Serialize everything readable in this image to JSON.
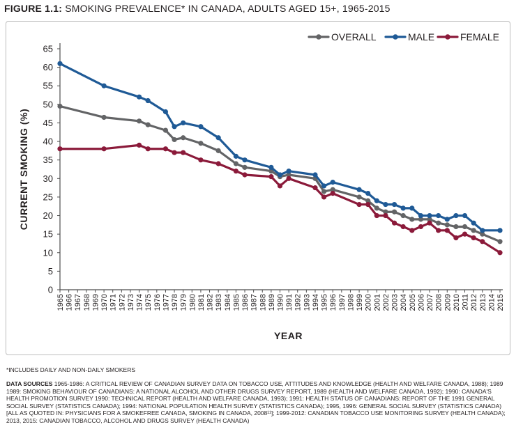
{
  "figure": {
    "label": "FIGURE 1.1:",
    "title": "SMOKING PREVALENCE* IN CANADA, ADULTS AGED 15+, 1965-2015"
  },
  "footnote": "*INCLUDES DAILY AND NON-DAILY SMOKERS",
  "sources": {
    "label": "DATA SOURCES",
    "text": " 1965-1986: A CRITICAL REVIEW OF CANADIAN SURVEY DATA ON TOBACCO USE, ATTITUDES AND KNOWLEDGE (HEALTH AND WELFARE CANADA, 1988); 1989 1989: SMOKING BEHAVIOUR OF CANADIANS: A NATIONAL ALCOHOL AND OTHER DRUGS SURVEY REPORT, 1989 (HEALTH AND WELFARE CANADA, 1992); 1990: CANADA'S HEALTH PROMOTION SURVEY 1990: TECHNICAL REPORT (HEALTH AND WELFARE CANADA, 1993); 1991: HEALTH STATUS OF CANADIANS: REPORT OF THE 1991 GENERAL SOCIAL SURVEY (STATISTICS CANADA); 1994: NATIONAL POPULATION HEALTH SURVEY (STATISTICS CANADA); 1995, 1996: GENERAL SOCIAL SURVEY (STATISTICS CANADA) [ALL AS QUOTED IN: PHYSICIANS FOR A SMOKEFREE CANADA, SMOKING IN CANADA, 2008¹¹]; 1999-2012: CANADIAN TOBACCO USE MONITORING SURVEY (HEALTH CANADA); 2013, 2015: CANADIAN TOBACCO, ALCOHOL AND DRUGS SURVEY (HEALTH CANADA)"
  },
  "chart_data": {
    "type": "line",
    "xlabel": "YEAR",
    "ylabel": "CURRENT SMOKING (%)",
    "ylim": [
      0,
      65
    ],
    "yticks": [
      0,
      5,
      10,
      15,
      20,
      25,
      30,
      35,
      40,
      45,
      50,
      55,
      60,
      65
    ],
    "xtick_labels": [
      "1965",
      "1966",
      "1967",
      "1968",
      "1969",
      "1970",
      "1971",
      "1972",
      "1973",
      "1974",
      "1975",
      "1976",
      "1977",
      "1978",
      "1979",
      "1980",
      "1981",
      "1982",
      "1983",
      "1984",
      "1985",
      "1986",
      "1987",
      "1988",
      "1989",
      "1990",
      "1991",
      "1992",
      "1993",
      "1994",
      "1995",
      "1996",
      "1997",
      "1998",
      "1999",
      "2000",
      "2001",
      "2002",
      "2003",
      "2004",
      "2005",
      "2006",
      "2007",
      "2008",
      "2009",
      "2010",
      "2011",
      "2012",
      "2013",
      "2014",
      "2015"
    ],
    "legend_position": "top-right",
    "series": [
      {
        "name": "OVERALL",
        "color": "#636466",
        "points": [
          [
            1965,
            49.5
          ],
          [
            1970,
            46.5
          ],
          [
            1974,
            45.5
          ],
          [
            1975,
            44.5
          ],
          [
            1977,
            43
          ],
          [
            1978,
            40.5
          ],
          [
            1979,
            41
          ],
          [
            1981,
            39.5
          ],
          [
            1983,
            37.5
          ],
          [
            1985,
            34
          ],
          [
            1986,
            33
          ],
          [
            1989,
            32
          ],
          [
            1990,
            30.5
          ],
          [
            1991,
            31
          ],
          [
            1994,
            30
          ],
          [
            1995,
            26.5
          ],
          [
            1996,
            27
          ],
          [
            1999,
            25
          ],
          [
            2000,
            24
          ],
          [
            2001,
            22
          ],
          [
            2002,
            21
          ],
          [
            2003,
            21
          ],
          [
            2004,
            20
          ],
          [
            2005,
            19
          ],
          [
            2006,
            19
          ],
          [
            2007,
            19
          ],
          [
            2008,
            18
          ],
          [
            2009,
            17.5
          ],
          [
            2010,
            17
          ],
          [
            2011,
            17
          ],
          [
            2012,
            16
          ],
          [
            2013,
            15
          ],
          [
            2015,
            13
          ]
        ]
      },
      {
        "name": "MALE",
        "color": "#1f5a96",
        "points": [
          [
            1965,
            61
          ],
          [
            1970,
            55
          ],
          [
            1974,
            52
          ],
          [
            1975,
            51
          ],
          [
            1977,
            48
          ],
          [
            1978,
            44
          ],
          [
            1979,
            45
          ],
          [
            1981,
            44
          ],
          [
            1983,
            41
          ],
          [
            1985,
            36
          ],
          [
            1986,
            35
          ],
          [
            1989,
            33
          ],
          [
            1990,
            31
          ],
          [
            1991,
            32
          ],
          [
            1994,
            31
          ],
          [
            1995,
            28
          ],
          [
            1996,
            29
          ],
          [
            1999,
            27
          ],
          [
            2000,
            26
          ],
          [
            2001,
            24
          ],
          [
            2002,
            23
          ],
          [
            2003,
            23
          ],
          [
            2004,
            22
          ],
          [
            2005,
            22
          ],
          [
            2006,
            20
          ],
          [
            2007,
            20
          ],
          [
            2008,
            20
          ],
          [
            2009,
            19
          ],
          [
            2010,
            20
          ],
          [
            2011,
            20
          ],
          [
            2012,
            18
          ],
          [
            2013,
            16
          ],
          [
            2015,
            16
          ]
        ]
      },
      {
        "name": "FEMALE",
        "color": "#8b1a3a",
        "points": [
          [
            1965,
            38
          ],
          [
            1970,
            38
          ],
          [
            1974,
            39
          ],
          [
            1975,
            38
          ],
          [
            1977,
            38
          ],
          [
            1978,
            37
          ],
          [
            1979,
            37
          ],
          [
            1981,
            35
          ],
          [
            1983,
            34
          ],
          [
            1985,
            32
          ],
          [
            1986,
            31
          ],
          [
            1989,
            30.5
          ],
          [
            1990,
            28
          ],
          [
            1991,
            30
          ],
          [
            1994,
            27.5
          ],
          [
            1995,
            25
          ],
          [
            1996,
            26
          ],
          [
            1999,
            23
          ],
          [
            2000,
            23
          ],
          [
            2001,
            20
          ],
          [
            2002,
            20
          ],
          [
            2003,
            18
          ],
          [
            2004,
            17
          ],
          [
            2005,
            16
          ],
          [
            2006,
            17
          ],
          [
            2007,
            18
          ],
          [
            2008,
            16
          ],
          [
            2009,
            16
          ],
          [
            2010,
            14
          ],
          [
            2011,
            15
          ],
          [
            2012,
            14
          ],
          [
            2013,
            13
          ],
          [
            2015,
            10
          ]
        ]
      }
    ]
  }
}
